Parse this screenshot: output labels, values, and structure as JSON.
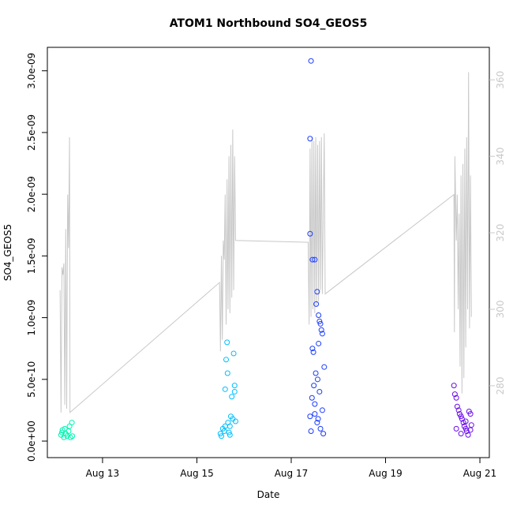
{
  "chart_data": {
    "type": "scatter",
    "title": "ATOM1 Northbound SO4_GEOS5",
    "x_label": "Date",
    "y_label": "SO4_GEOS5",
    "xlim": [
      11.83,
      21.2
    ],
    "xticks": [
      {
        "value": 13,
        "label": "Aug 13"
      },
      {
        "value": 15,
        "label": "Aug 15"
      },
      {
        "value": 17,
        "label": "Aug 17"
      },
      {
        "value": 19,
        "label": "Aug 19"
      },
      {
        "value": 21,
        "label": "Aug 21"
      }
    ],
    "ylim": [
      -1.34e-10,
      3.19e-09
    ],
    "yticks": [
      {
        "value": 0,
        "label": "0.0e+00"
      },
      {
        "value": 5e-10,
        "label": "5.0e-10"
      },
      {
        "value": 1e-09,
        "label": "1.0e-09"
      },
      {
        "value": 1.5e-09,
        "label": "1.5e-09"
      },
      {
        "value": 2e-09,
        "label": "2.0e-09"
      },
      {
        "value": 2.5e-09,
        "label": "2.5e-09"
      },
      {
        "value": 3e-09,
        "label": "3.0e-09"
      }
    ],
    "y2lim": [
      261.2,
      368.5
    ],
    "y2ticks": [
      280,
      300,
      320,
      340,
      360
    ],
    "y2_color": "#c8c8c8",
    "series": [
      {
        "color": "#00f5b0",
        "x": [
          12.12,
          12.14,
          12.15,
          12.18,
          12.2,
          12.22,
          12.25,
          12.28,
          12.3,
          12.32,
          12.35,
          12.36
        ],
        "values": [
          5e-11,
          7e-11,
          9e-11,
          3e-11,
          1e-10,
          6e-11,
          4e-11,
          8e-11,
          1.2e-10,
          3e-11,
          1.5e-10,
          4e-11
        ]
      },
      {
        "color": "#00bfff",
        "x": [
          15.5,
          15.52,
          15.55,
          15.58,
          15.6,
          15.6,
          15.62,
          15.64,
          15.65,
          15.66,
          15.68,
          15.7,
          15.7,
          15.72,
          15.74,
          15.76,
          15.78,
          15.8,
          15.8,
          15.82
        ],
        "values": [
          6e-11,
          4e-11,
          1e-10,
          8e-11,
          4.2e-10,
          1.2e-10,
          6.6e-10,
          8e-10,
          5.5e-10,
          1.5e-10,
          7e-11,
          1.2e-10,
          5e-11,
          2e-10,
          3.6e-10,
          1.8e-10,
          7.1e-10,
          4.5e-10,
          4e-10,
          1.6e-10
        ]
      },
      {
        "color": "#1a3cff",
        "x": [
          17.42,
          17.4,
          17.4,
          17.45,
          17.5,
          17.55,
          17.53,
          17.58,
          17.6,
          17.62,
          17.64,
          17.66,
          17.58,
          17.45,
          17.47,
          17.7,
          17.52,
          17.56,
          17.48,
          17.6,
          17.44,
          17.5,
          17.66,
          17.4,
          17.55,
          17.62,
          17.68,
          17.5,
          17.42,
          17.57
        ],
        "values": [
          3.08e-09,
          2.45e-09,
          1.68e-09,
          1.47e-09,
          1.47e-09,
          1.21e-09,
          1.11e-09,
          1.02e-09,
          9.7e-10,
          9.5e-10,
          9e-10,
          8.7e-10,
          7.9e-10,
          7.5e-10,
          7.2e-10,
          6e-10,
          5.5e-10,
          5e-10,
          4.5e-10,
          4e-10,
          3.5e-10,
          3e-10,
          2.5e-10,
          2e-10,
          1.5e-10,
          1e-10,
          6e-11,
          2.2e-10,
          8e-11,
          1.8e-10
        ]
      },
      {
        "color": "#6a0dea",
        "x": [
          20.45,
          20.47,
          20.5,
          20.52,
          20.55,
          20.57,
          20.6,
          20.62,
          20.65,
          20.67,
          20.7,
          20.72,
          20.75,
          20.77,
          20.8,
          20.82,
          20.5,
          20.6,
          20.7,
          20.8
        ],
        "values": [
          4.5e-10,
          3.8e-10,
          3.5e-10,
          2.8e-10,
          2.5e-10,
          2.2e-10,
          2e-10,
          1.8e-10,
          1.5e-10,
          1.2e-10,
          1e-10,
          8e-11,
          5e-11,
          2.4e-10,
          2.2e-10,
          1.3e-10,
          1e-10,
          6e-11,
          1.6e-10,
          9e-11
        ]
      },
      {
        "type": "line",
        "axis": "y2",
        "color": "#c8c8c8",
        "x": [
          12.1,
          12.12,
          12.14,
          12.16,
          12.18,
          12.2,
          12.22,
          12.24,
          12.26,
          12.28,
          12.3,
          12.31,
          15.48,
          15.5,
          15.52,
          15.54,
          15.56,
          15.58,
          15.6,
          15.62,
          15.64,
          15.66,
          15.68,
          15.7,
          15.72,
          15.74,
          15.76,
          15.78,
          15.8,
          15.82,
          17.36,
          17.38,
          17.4,
          17.42,
          17.44,
          17.46,
          17.48,
          17.5,
          17.52,
          17.54,
          17.56,
          17.58,
          17.6,
          17.62,
          17.64,
          17.66,
          17.7,
          17.72,
          20.45,
          20.46,
          20.47,
          20.5,
          20.52,
          20.54,
          20.56,
          20.58,
          20.6,
          20.62,
          20.64,
          20.66,
          20.68,
          20.7,
          20.72,
          20.74,
          20.76,
          20.78,
          20.8,
          20.82
        ],
        "values": [
          305,
          273,
          311,
          309,
          312,
          275,
          321,
          274,
          330,
          316,
          345,
          273,
          307,
          289,
          314,
          292,
          318,
          313,
          330,
          296,
          334,
          300,
          340,
          299,
          343,
          303,
          347,
          305,
          340,
          318,
          317.5,
          296,
          342,
          298,
          345,
          300,
          344,
          299,
          345,
          301,
          343,
          302,
          344,
          305,
          345,
          304,
          346,
          304,
          330,
          294,
          340,
          318,
          330,
          300,
          325,
          285,
          335,
          278,
          338,
          282,
          342,
          290,
          345,
          300,
          362,
          295,
          335,
          298
        ]
      }
    ]
  }
}
